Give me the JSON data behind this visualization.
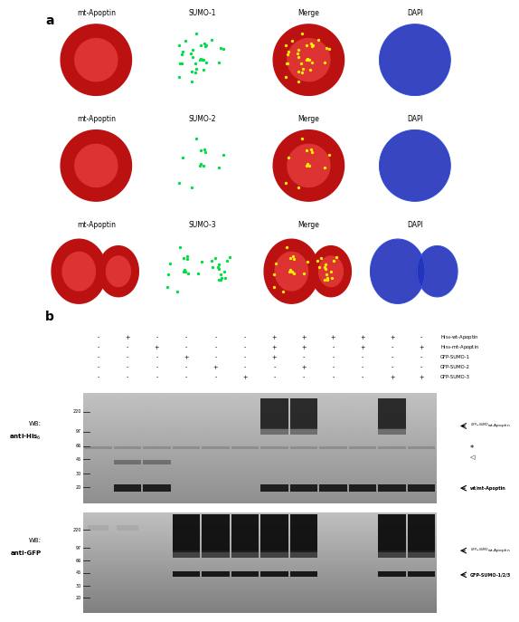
{
  "panel_a_label": "a",
  "panel_b_label": "b",
  "row_labels": [
    [
      "mt-Apoptin",
      "SUMO-1",
      "Merge",
      "DAPI"
    ],
    [
      "mt-Apoptin",
      "SUMO-2",
      "Merge",
      "DAPI"
    ],
    [
      "mt-Apoptin",
      "SUMO-3",
      "Merge",
      "DAPI"
    ]
  ],
  "sample_table": {
    "rows": [
      "His₆-wt-Apoptin",
      "His₆-mt-Apoptin",
      "GFP-SUMO-1",
      "GFP-SUMO-2",
      "GFP-SUMO-3"
    ],
    "cols": [
      [
        "-",
        "-",
        "-",
        "-",
        "-"
      ],
      [
        "+",
        "-",
        "-",
        "-",
        "-"
      ],
      [
        "-",
        "+",
        "-",
        "-",
        "-"
      ],
      [
        "-",
        "-",
        "+",
        "-",
        "-"
      ],
      [
        "-",
        "-",
        "-",
        "+",
        "-"
      ],
      [
        "-",
        "-",
        "-",
        "-",
        "+"
      ],
      [
        "+",
        "+",
        "+",
        "-",
        "-"
      ],
      [
        "+",
        "+",
        "-",
        "+",
        "-"
      ],
      [
        "+",
        "-",
        "-",
        "-",
        "-"
      ],
      [
        "+",
        "+",
        "-",
        "-",
        "-"
      ],
      [
        "+",
        "-",
        "-",
        "-",
        "+"
      ],
      [
        "-",
        "+",
        "-",
        "-",
        "+"
      ]
    ]
  },
  "mw_positions": {
    "220": 0.83,
    "97": 0.65,
    "66": 0.52,
    "45": 0.4,
    "30": 0.27,
    "20": 0.15
  },
  "background_color": "#ffffff"
}
